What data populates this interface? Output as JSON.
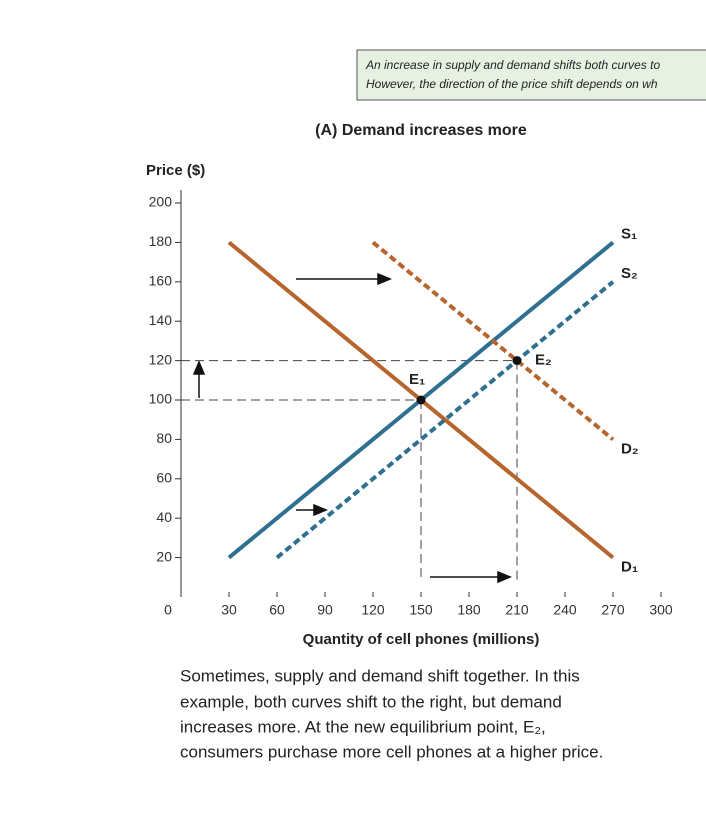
{
  "note": {
    "lines": [
      "An increase in supply and demand shifts both curves to",
      "However, the direction of the price shift depends on wh"
    ]
  },
  "chart_data": {
    "type": "line",
    "title": "(A) Demand increases more",
    "ylabel": "Price ($)",
    "xlabel": "Quantity of cell phones (millions)",
    "xlim": [
      0,
      300
    ],
    "xticks": [
      0,
      30,
      60,
      90,
      120,
      150,
      180,
      210,
      240,
      270,
      300
    ],
    "ylim": [
      0,
      200
    ],
    "yticks": [
      20,
      40,
      60,
      80,
      100,
      120,
      140,
      160,
      180,
      200
    ],
    "series": [
      {
        "name": "D₁",
        "color": "#b5652d",
        "dashed": false,
        "x": [
          30,
          270
        ],
        "values": [
          180,
          20
        ]
      },
      {
        "name": "S₁",
        "color": "#2f6f8f",
        "dashed": false,
        "x": [
          30,
          270
        ],
        "values": [
          20,
          180
        ]
      },
      {
        "name": "D₂",
        "color": "#b5652d",
        "dashed": true,
        "x": [
          120,
          270
        ],
        "values": [
          180,
          80
        ]
      },
      {
        "name": "S₂",
        "color": "#2f6f8f",
        "dashed": true,
        "x": [
          60,
          270
        ],
        "values": [
          20,
          160
        ]
      }
    ],
    "points": [
      {
        "label": "E₁",
        "x": 150,
        "y": 100
      },
      {
        "label": "E₂",
        "x": 210,
        "y": 120
      }
    ]
  },
  "caption": {
    "lines": [
      "Sometimes, supply and demand shift together. In this",
      "example, both curves shift to the right, but demand",
      "increases more. At the new equilibrium point, E₂,",
      "consumers purchase more cell phones at a higher price."
    ]
  }
}
